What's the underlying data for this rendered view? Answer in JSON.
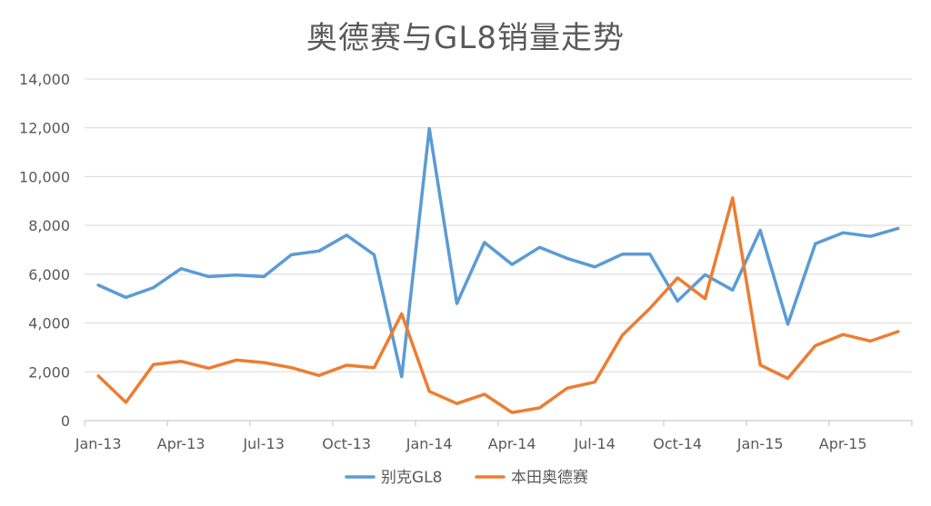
{
  "chart_data": {
    "type": "line",
    "title": "奥德赛与GL8销量走势",
    "xlabel": "",
    "ylabel": "",
    "x": [
      "Jan-13",
      "Feb-13",
      "Mar-13",
      "Apr-13",
      "May-13",
      "Jun-13",
      "Jul-13",
      "Aug-13",
      "Sep-13",
      "Oct-13",
      "Nov-13",
      "Dec-13",
      "Jan-14",
      "Feb-14",
      "Mar-14",
      "Apr-14",
      "May-14",
      "Jun-14",
      "Jul-14",
      "Aug-14",
      "Sep-14",
      "Oct-14",
      "Nov-14",
      "Dec-14",
      "Jan-15",
      "Feb-15",
      "Mar-15",
      "Apr-15",
      "May-15",
      "Jun-15"
    ],
    "x_tick_labels": [
      "Jan-13",
      "Apr-13",
      "Jul-13",
      "Oct-13",
      "Jan-14",
      "Apr-14",
      "Jul-14",
      "Oct-14",
      "Jan-15",
      "Apr-15"
    ],
    "y_tick_labels": [
      "0",
      "2,000",
      "4,000",
      "6,000",
      "8,000",
      "10,000",
      "12,000",
      "14,000"
    ],
    "ylim": [
      0,
      14000
    ],
    "grid": true,
    "legend_position": "bottom",
    "series": [
      {
        "name": "别克GL8",
        "color": "#5B9BD5",
        "values": [
          5550,
          5050,
          5450,
          6230,
          5900,
          5970,
          5900,
          6800,
          6950,
          7600,
          6800,
          1800,
          11970,
          4800,
          7300,
          6400,
          7100,
          6650,
          6300,
          6820,
          6820,
          4900,
          5980,
          5350,
          7800,
          3950,
          7250,
          7700,
          7550,
          7880
        ]
      },
      {
        "name": "本田奥德赛",
        "color": "#ED7D31",
        "values": [
          1830,
          750,
          2300,
          2430,
          2150,
          2480,
          2380,
          2170,
          1850,
          2270,
          2170,
          4380,
          1200,
          700,
          1080,
          330,
          520,
          1330,
          1580,
          3500,
          4600,
          5850,
          5000,
          9130,
          2280,
          1730,
          3070,
          3530,
          3260,
          3650
        ]
      }
    ]
  }
}
